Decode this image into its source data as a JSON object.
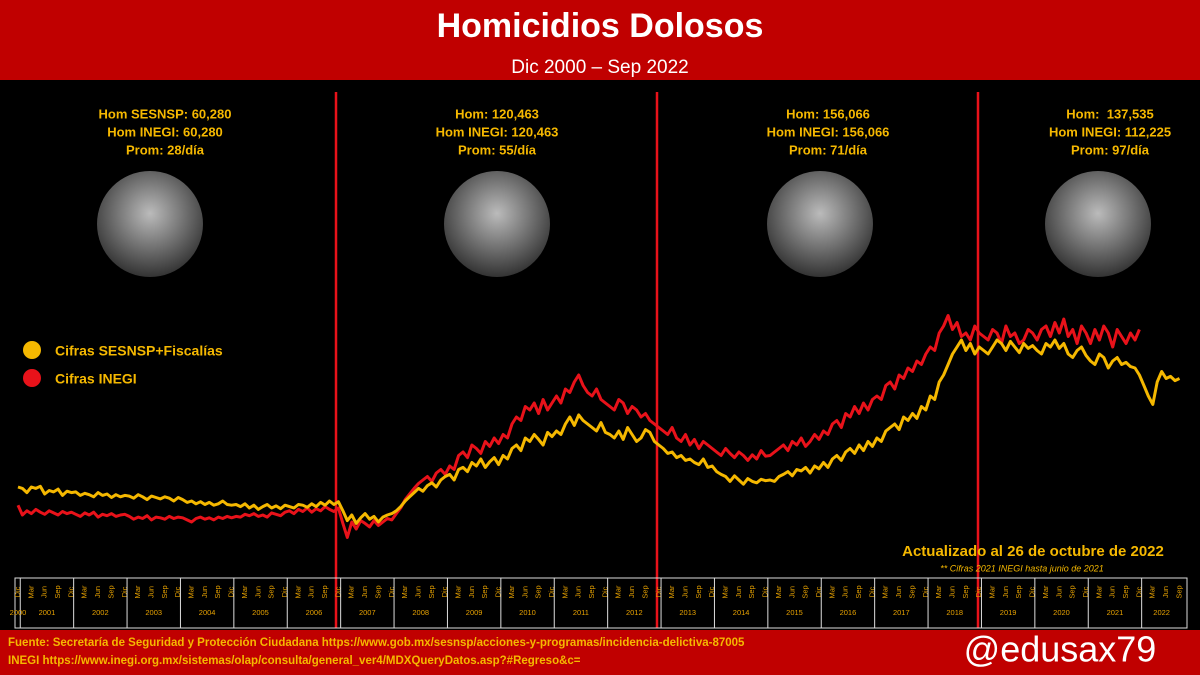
{
  "chart_data": {
    "type": "line",
    "title": "Homicidios Dolosos",
    "subtitle": "Dic 2000 – Sep 2022",
    "x": [
      "2000-12",
      "2001-01",
      "2001-02",
      "2001-03",
      "2001-04",
      "2001-05",
      "2001-06",
      "2001-07",
      "2001-08",
      "2001-09",
      "2001-10",
      "2001-11",
      "2001-12",
      "2002-01",
      "2002-02",
      "2002-03",
      "2002-04",
      "2002-05",
      "2002-06",
      "2002-07",
      "2002-08",
      "2002-09",
      "2002-10",
      "2002-11",
      "2002-12",
      "2003-01",
      "2003-02",
      "2003-03",
      "2003-04",
      "2003-05",
      "2003-06",
      "2003-07",
      "2003-08",
      "2003-09",
      "2003-10",
      "2003-11",
      "2003-12",
      "2004-01",
      "2004-02",
      "2004-03",
      "2004-04",
      "2004-05",
      "2004-06",
      "2004-07",
      "2004-08",
      "2004-09",
      "2004-10",
      "2004-11",
      "2004-12",
      "2005-01",
      "2005-02",
      "2005-03",
      "2005-04",
      "2005-05",
      "2005-06",
      "2005-07",
      "2005-08",
      "2005-09",
      "2005-10",
      "2005-11",
      "2005-12",
      "2006-01",
      "2006-02",
      "2006-03",
      "2006-04",
      "2006-05",
      "2006-06",
      "2006-07",
      "2006-08",
      "2006-09",
      "2006-10",
      "2006-11",
      "2006-12",
      "2007-01",
      "2007-02",
      "2007-03",
      "2007-04",
      "2007-05",
      "2007-06",
      "2007-07",
      "2007-08",
      "2007-09",
      "2007-10",
      "2007-11",
      "2007-12",
      "2008-01",
      "2008-02",
      "2008-03",
      "2008-04",
      "2008-05",
      "2008-06",
      "2008-07",
      "2008-08",
      "2008-09",
      "2008-10",
      "2008-11",
      "2008-12",
      "2009-01",
      "2009-02",
      "2009-03",
      "2009-04",
      "2009-05",
      "2009-06",
      "2009-07",
      "2009-08",
      "2009-09",
      "2009-10",
      "2009-11",
      "2009-12",
      "2010-01",
      "2010-02",
      "2010-03",
      "2010-04",
      "2010-05",
      "2010-06",
      "2010-07",
      "2010-08",
      "2010-09",
      "2010-10",
      "2010-11",
      "2010-12",
      "2011-01",
      "2011-02",
      "2011-03",
      "2011-04",
      "2011-05",
      "2011-06",
      "2011-07",
      "2011-08",
      "2011-09",
      "2011-10",
      "2011-11",
      "2011-12",
      "2012-01",
      "2012-02",
      "2012-03",
      "2012-04",
      "2012-05",
      "2012-06",
      "2012-07",
      "2012-08",
      "2012-09",
      "2012-10",
      "2012-11",
      "2012-12",
      "2013-01",
      "2013-02",
      "2013-03",
      "2013-04",
      "2013-05",
      "2013-06",
      "2013-07",
      "2013-08",
      "2013-09",
      "2013-10",
      "2013-11",
      "2013-12",
      "2014-01",
      "2014-02",
      "2014-03",
      "2014-04",
      "2014-05",
      "2014-06",
      "2014-07",
      "2014-08",
      "2014-09",
      "2014-10",
      "2014-11",
      "2014-12",
      "2015-01",
      "2015-02",
      "2015-03",
      "2015-04",
      "2015-05",
      "2015-06",
      "2015-07",
      "2015-08",
      "2015-09",
      "2015-10",
      "2015-11",
      "2015-12",
      "2016-01",
      "2016-02",
      "2016-03",
      "2016-04",
      "2016-05",
      "2016-06",
      "2016-07",
      "2016-08",
      "2016-09",
      "2016-10",
      "2016-11",
      "2016-12",
      "2017-01",
      "2017-02",
      "2017-03",
      "2017-04",
      "2017-05",
      "2017-06",
      "2017-07",
      "2017-08",
      "2017-09",
      "2017-10",
      "2017-11",
      "2017-12",
      "2018-01",
      "2018-02",
      "2018-03",
      "2018-04",
      "2018-05",
      "2018-06",
      "2018-07",
      "2018-08",
      "2018-09",
      "2018-10",
      "2018-11",
      "2018-12",
      "2019-01",
      "2019-02",
      "2019-03",
      "2019-04",
      "2019-05",
      "2019-06",
      "2019-07",
      "2019-08",
      "2019-09",
      "2019-10",
      "2019-11",
      "2019-12",
      "2020-01",
      "2020-02",
      "2020-03",
      "2020-04",
      "2020-05",
      "2020-06",
      "2020-07",
      "2020-08",
      "2020-09",
      "2020-10",
      "2020-11",
      "2020-12",
      "2021-01",
      "2021-02",
      "2021-03",
      "2021-04",
      "2021-05",
      "2021-06",
      "2021-07",
      "2021-08",
      "2021-09",
      "2021-10",
      "2021-11",
      "2021-12",
      "2022-01",
      "2022-02",
      "2022-03",
      "2022-04",
      "2022-05",
      "2022-06",
      "2022-07",
      "2022-08",
      "2022-09"
    ],
    "years": [
      "2000",
      "2001",
      "2002",
      "2003",
      "2004",
      "2005",
      "2006",
      "2007",
      "2008",
      "2009",
      "2010",
      "2011",
      "2012",
      "2013",
      "2014",
      "2015",
      "2016",
      "2017",
      "2018",
      "2019",
      "2020",
      "2021",
      "2022"
    ],
    "month_labels": [
      "Mar",
      "Jun",
      "Sep",
      "Dic"
    ],
    "series": [
      {
        "name": "Cifras SESNSP+Fiscalías",
        "color": "#f5b800",
        "values": [
          900,
          880,
          820,
          900,
          880,
          910,
          800,
          850,
          830,
          870,
          780,
          840,
          820,
          830,
          780,
          810,
          790,
          760,
          820,
          780,
          800,
          750,
          790,
          760,
          780,
          770,
          740,
          790,
          760,
          720,
          770,
          750,
          730,
          760,
          740,
          700,
          750,
          720,
          680,
          700,
          660,
          690,
          650,
          680,
          640,
          660,
          700,
          650,
          640,
          650,
          620,
          660,
          600,
          640,
          580,
          620,
          650,
          600,
          630,
          590,
          640,
          620,
          600,
          650,
          640,
          610,
          660,
          620,
          680,
          640,
          700,
          650,
          690,
          560,
          420,
          500,
          380,
          460,
          520,
          440,
          480,
          400,
          470,
          500,
          520,
          560,
          620,
          700,
          760,
          820,
          880,
          840,
          920,
          960,
          900,
          1000,
          1050,
          1080,
          1000,
          1150,
          1180,
          1120,
          1250,
          1200,
          1300,
          1180,
          1260,
          1320,
          1220,
          1350,
          1300,
          1450,
          1500,
          1420,
          1600,
          1550,
          1650,
          1580,
          1500,
          1680,
          1620,
          1700,
          1650,
          1800,
          1900,
          1780,
          1930,
          1850,
          1800,
          1750,
          1700,
          1820,
          1680,
          1650,
          1600,
          1700,
          1580,
          1750,
          1650,
          1550,
          1600,
          1720,
          1680,
          1550,
          1500,
          1450,
          1380,
          1400,
          1320,
          1350,
          1280,
          1300,
          1250,
          1220,
          1300,
          1180,
          1200,
          1120,
          1080,
          1050,
          980,
          1060,
          1000,
          940,
          1020,
          980,
          960,
          1010,
          990,
          1000,
          980,
          1050,
          1080,
          1120,
          1060,
          1150,
          1130,
          1180,
          1100,
          1200,
          1160,
          1250,
          1180,
          1300,
          1350,
          1280,
          1400,
          1450,
          1380,
          1500,
          1420,
          1550,
          1480,
          1600,
          1550,
          1700,
          1750,
          1800,
          1720,
          1900,
          1850,
          1950,
          1880,
          2050,
          2000,
          2200,
          2150,
          2400,
          2500,
          2650,
          2800,
          2900,
          3000,
          2850,
          2950,
          2800,
          2900,
          2850,
          2800,
          2900,
          3000,
          2950,
          2850,
          2980,
          2900,
          2820,
          2950,
          2880,
          2920,
          2850,
          2800,
          2950,
          2900,
          3000,
          2880,
          2950,
          2800,
          2750,
          2850,
          2900,
          2780,
          2700,
          2650,
          2800,
          2750,
          2600,
          2700,
          2750,
          2650,
          2680,
          2620,
          2600,
          2500,
          2350,
          2200,
          2080,
          2400,
          2550,
          2450,
          2480,
          2420,
          2450
        ]
      },
      {
        "name": "Cifras INEGI",
        "color": "#e8121a",
        "values": [
          640,
          500,
          560,
          520,
          580,
          540,
          510,
          560,
          530,
          500,
          550,
          520,
          540,
          510,
          480,
          530,
          500,
          540,
          470,
          510,
          490,
          520,
          480,
          500,
          510,
          480,
          440,
          470,
          450,
          490,
          430,
          470,
          460,
          440,
          480,
          450,
          470,
          460,
          430,
          400,
          450,
          470,
          440,
          460,
          430,
          470,
          450,
          480,
          460,
          480,
          470,
          510,
          490,
          520,
          480,
          500,
          470,
          530,
          510,
          490,
          540,
          560,
          520,
          580,
          550,
          600,
          540,
          590,
          560,
          620,
          580,
          550,
          600,
          380,
          180,
          400,
          300,
          420,
          380,
          330,
          420,
          350,
          400,
          450,
          430,
          520,
          600,
          720,
          800,
          880,
          950,
          1000,
          1050,
          980,
          1100,
          1150,
          1080,
          1200,
          1150,
          1350,
          1400,
          1320,
          1500,
          1450,
          1380,
          1550,
          1480,
          1600,
          1520,
          1650,
          1600,
          1800,
          1900,
          1850,
          2050,
          2000,
          2100,
          1950,
          2150,
          2000,
          2100,
          2200,
          2100,
          2300,
          2250,
          2400,
          2500,
          2350,
          2250,
          2200,
          2300,
          2150,
          2100,
          2050,
          2000,
          2150,
          2100,
          1950,
          2050,
          2000,
          1900,
          1950,
          1850,
          1800,
          1750,
          1700,
          1650,
          1750,
          1600,
          1550,
          1650,
          1500,
          1580,
          1450,
          1550,
          1500,
          1450,
          1400,
          1350,
          1450,
          1380,
          1320,
          1400,
          1350,
          1280,
          1360,
          1300,
          1420,
          1340,
          1350,
          1400,
          1450,
          1500,
          1420,
          1550,
          1500,
          1600,
          1480,
          1550,
          1650,
          1580,
          1700,
          1650,
          1800,
          1850,
          1750,
          1950,
          1900,
          2050,
          1950,
          2100,
          2000,
          2150,
          2200,
          2150,
          2350,
          2400,
          2300,
          2500,
          2450,
          2600,
          2550,
          2700,
          2650,
          2800,
          2900,
          2850,
          3100,
          3200,
          3350,
          3150,
          3250,
          3050,
          3100,
          3000,
          3200,
          3100,
          3050,
          3000,
          3150,
          3100,
          2950,
          3200,
          3050,
          3100,
          2950,
          3000,
          3150,
          3100,
          3000,
          3150,
          3200,
          3050,
          3250,
          3100,
          3300,
          3050,
          3150,
          2950,
          3200,
          3100,
          2950,
          3150,
          3000,
          3200,
          3100,
          2900,
          3150,
          3050,
          2950,
          3100,
          3000,
          3150,
          null,
          null,
          null,
          null,
          null,
          null,
          null,
          null,
          null
        ]
      }
    ],
    "ylim": [
      0,
      3600
    ],
    "annotations": [
      {
        "lines": [
          "Hom SESNSP: 60,280",
          "Hom INEGI: 60,280",
          "Prom: 28/día"
        ]
      },
      {
        "lines": [
          "Hom: 120,463",
          "Hom INEGI: 120,463",
          "Prom: 55/día"
        ]
      },
      {
        "lines": [
          "Hom: 156,066",
          "Hom INEGI: 156,066",
          "Prom: 71/día"
        ]
      },
      {
        "lines": [
          "Hom:  137,535",
          "Hom INEGI: 112,225",
          "Prom: 97/día"
        ]
      }
    ],
    "updated": "Actualizado al 26 de octubre de 2022",
    "note": "** Cifras 2021 INEGI hasta junio de 2021"
  },
  "footer": {
    "source": [
      "Fuente: Secretaría de Seguridad y Protección Ciudadana https://www.gob.mx/sesnsp/acciones-y-programas/incidencia-delictiva-87005",
      "INEGI https://www.inegi.org.mx/sistemas/olap/consulta/general_ver4/MDXQueryDatos.asp?#Regreso&c="
    ],
    "handle": "@edusax79"
  }
}
